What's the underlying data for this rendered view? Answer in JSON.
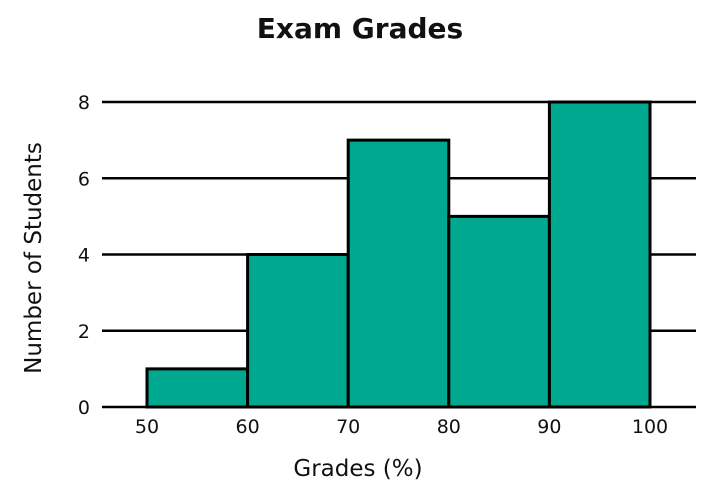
{
  "chart_data": {
    "type": "bar",
    "title": "Exam Grades",
    "xlabel": "Grades (%)",
    "ylabel": "Number of Students",
    "bins": [
      {
        "from": 50,
        "to": 60,
        "value": 1
      },
      {
        "from": 60,
        "to": 70,
        "value": 4
      },
      {
        "from": 70,
        "to": 80,
        "value": 7
      },
      {
        "from": 80,
        "to": 90,
        "value": 5
      },
      {
        "from": 90,
        "to": 100,
        "value": 8
      }
    ],
    "x_ticks": [
      50,
      60,
      70,
      80,
      90,
      100
    ],
    "y_ticks": [
      0,
      2,
      4,
      6,
      8
    ],
    "xlim": [
      50,
      100
    ],
    "ylim": [
      0,
      8
    ],
    "grid": "horizontal",
    "bar_color": "#00a88f",
    "edge_color": "#000000"
  }
}
